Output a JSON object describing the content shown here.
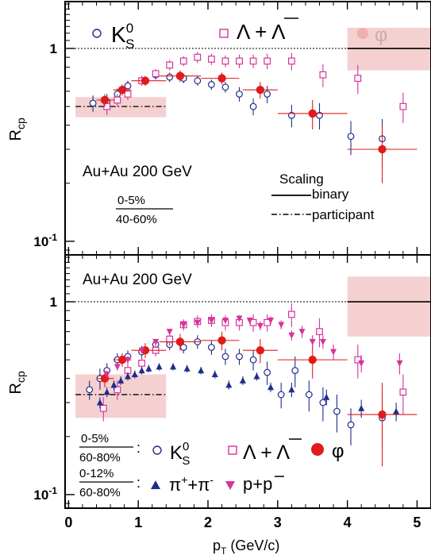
{
  "chart_data": [
    {
      "type": "scatter",
      "panel": "top",
      "ylabel": "R",
      "ylabel_sub": "cp",
      "yscale": "log",
      "ylim": [
        0.085,
        1.75
      ],
      "xlim": [
        -0.05,
        5.2
      ],
      "y_ticks": [
        {
          "value": 1,
          "label": "1"
        },
        {
          "value": 0.1,
          "label": "10",
          "sup": "-1"
        }
      ],
      "reference_lines": [
        {
          "y": 1,
          "style": "dotted"
        }
      ],
      "annotation": "Au+Au 200 GeV",
      "ratio": {
        "num": "0-5%",
        "den": "40-60%"
      },
      "scaling": {
        "title": "Scaling",
        "binary": "binary",
        "participant": "participant"
      },
      "bands": [
        {
          "x0": 0.1,
          "x1": 1.4,
          "y0": 0.44,
          "y1": 0.56,
          "label": "participant scaling uncertainty",
          "line_y": 0.5,
          "line": "dashdot"
        },
        {
          "x0": 4.0,
          "x1": 5.2,
          "y0": 0.77,
          "y1": 1.28,
          "label": "binary scaling uncertainty",
          "line_y": 1.0,
          "line": "solid"
        }
      ],
      "legend": {
        "k0s": "K",
        "k0s_sup": "0",
        "k0s_sub": "S",
        "lambda": "Λ + Λ",
        "phi": "φ"
      },
      "series": [
        {
          "name": "K0S",
          "marker": "open-circle",
          "color": "#1f2d8a",
          "x": [
            0.35,
            0.55,
            0.7,
            0.85,
            1.05,
            1.25,
            1.45,
            1.65,
            1.85,
            2.05,
            2.25,
            2.45,
            2.65,
            2.85,
            3.2,
            3.6,
            4.05,
            4.5
          ],
          "y": [
            0.52,
            0.53,
            0.58,
            0.64,
            0.68,
            0.73,
            0.71,
            0.7,
            0.68,
            0.65,
            0.63,
            0.58,
            0.5,
            0.58,
            0.45,
            0.45,
            0.35,
            0.34
          ],
          "yerr": [
            0.05,
            0.05,
            0.04,
            0.04,
            0.04,
            0.04,
            0.04,
            0.04,
            0.04,
            0.04,
            0.04,
            0.05,
            0.05,
            0.06,
            0.06,
            0.07,
            0.07,
            0.09
          ]
        },
        {
          "name": "Lambda+AntiLambda",
          "marker": "open-square",
          "color": "#d6339b",
          "x": [
            0.55,
            0.7,
            0.85,
            1.05,
            1.25,
            1.45,
            1.65,
            1.85,
            2.05,
            2.25,
            2.45,
            2.65,
            2.85,
            3.2,
            3.65,
            4.15,
            4.8
          ],
          "y": [
            0.5,
            0.54,
            0.58,
            0.68,
            0.74,
            0.82,
            0.86,
            0.9,
            0.88,
            0.86,
            0.86,
            0.86,
            0.86,
            0.86,
            0.73,
            0.7,
            0.5
          ],
          "yerr": [
            0.05,
            0.04,
            0.04,
            0.04,
            0.04,
            0.05,
            0.05,
            0.06,
            0.06,
            0.06,
            0.07,
            0.07,
            0.08,
            0.09,
            0.1,
            0.12,
            0.09
          ]
        },
        {
          "name": "phi",
          "marker": "filled-circle",
          "color": "#e01b1b",
          "x": [
            0.52,
            0.77,
            1.1,
            1.6,
            2.2,
            2.75,
            3.5,
            4.5
          ],
          "xerr_lo": [
            0.12,
            0.13,
            0.2,
            0.3,
            0.3,
            0.25,
            0.5,
            0.5
          ],
          "xerr_hi": [
            0.13,
            0.13,
            0.3,
            0.3,
            0.25,
            0.25,
            0.5,
            0.5
          ],
          "y": [
            0.54,
            0.61,
            0.68,
            0.72,
            0.7,
            0.61,
            0.46,
            0.3
          ],
          "yerr": [
            0.04,
            0.04,
            0.04,
            0.05,
            0.05,
            0.06,
            0.08,
            0.1
          ]
        }
      ]
    },
    {
      "type": "scatter",
      "panel": "bottom",
      "ylabel": "R",
      "ylabel_sub": "cp",
      "xlabel": "p",
      "xlabel_sub": "T",
      "xlabel_rest": " (GeV/c)",
      "yscale": "log",
      "ylim": [
        0.085,
        1.75
      ],
      "xlim": [
        -0.05,
        5.2
      ],
      "x_ticks": [
        "0",
        "1",
        "2",
        "3",
        "4",
        "5"
      ],
      "y_ticks": [
        {
          "value": 1,
          "label": "1"
        },
        {
          "value": 0.1,
          "label": "10",
          "sup": "-1"
        }
      ],
      "reference_lines": [
        {
          "y": 1,
          "style": "dotted"
        }
      ],
      "annotation": "Au+Au 200 GeV",
      "bands": [
        {
          "x0": 0.1,
          "x1": 1.4,
          "y0": 0.25,
          "y1": 0.42,
          "label": "participant scaling uncertainty",
          "line_y": 0.33,
          "line": "dashdot"
        },
        {
          "x0": 4.0,
          "x1": 5.2,
          "y0": 0.66,
          "y1": 1.35,
          "label": "binary scaling uncertainty",
          "line_y": 1.0,
          "line": "solid"
        }
      ],
      "legend": {
        "ratio1": {
          "num": "0-5%",
          "den": "60-80%"
        },
        "ratio2": {
          "num": "0-12%",
          "den": "60-80%"
        },
        "colon": ":",
        "k0s": "K",
        "k0s_sup": "0",
        "k0s_sub": "S",
        "lambda": "Λ + Λ",
        "phi": "φ",
        "pion": "π",
        "pion_plus": "+",
        "pion_join": "+π",
        "pion_minus": "-",
        "proton": "p+p"
      },
      "series": [
        {
          "name": "K0S",
          "marker": "open-circle",
          "color": "#1f2d8a",
          "x": [
            0.3,
            0.45,
            0.55,
            0.7,
            0.85,
            1.05,
            1.25,
            1.45,
            1.65,
            1.85,
            2.05,
            2.25,
            2.45,
            2.65,
            2.85,
            3.05,
            3.25,
            3.45,
            3.65,
            3.85,
            4.05,
            4.5
          ],
          "y": [
            0.35,
            0.4,
            0.44,
            0.5,
            0.52,
            0.55,
            0.6,
            0.6,
            0.58,
            0.62,
            0.58,
            0.52,
            0.52,
            0.5,
            0.43,
            0.33,
            0.44,
            0.33,
            0.3,
            0.27,
            0.23,
            0.25
          ],
          "yerr": [
            0.04,
            0.05,
            0.04,
            0.04,
            0.04,
            0.04,
            0.04,
            0.04,
            0.04,
            0.05,
            0.05,
            0.05,
            0.05,
            0.06,
            0.06,
            0.05,
            0.08,
            0.06,
            0.06,
            0.06,
            0.05,
            0.07
          ]
        },
        {
          "name": "Lambda+AntiLambda",
          "marker": "open-square",
          "color": "#d6339b",
          "x": [
            0.5,
            0.7,
            0.85,
            1.05,
            1.25,
            1.45,
            1.65,
            1.85,
            2.05,
            2.25,
            2.45,
            2.65,
            2.85,
            3.2,
            3.6,
            4.15,
            4.8
          ],
          "y": [
            0.28,
            0.35,
            0.44,
            0.48,
            0.56,
            0.64,
            0.76,
            0.79,
            0.8,
            0.78,
            0.78,
            0.78,
            0.78,
            0.86,
            0.7,
            0.5,
            0.34
          ],
          "yerr": [
            0.04,
            0.04,
            0.04,
            0.04,
            0.04,
            0.05,
            0.05,
            0.06,
            0.06,
            0.07,
            0.07,
            0.08,
            0.08,
            0.12,
            0.12,
            0.1,
            0.08
          ]
        },
        {
          "name": "phi",
          "marker": "filled-circle",
          "color": "#e01b1b",
          "x": [
            0.52,
            0.77,
            1.1,
            1.6,
            2.2,
            2.75,
            3.5,
            4.5
          ],
          "xerr_lo": [
            0.12,
            0.13,
            0.2,
            0.3,
            0.3,
            0.25,
            0.5,
            0.5
          ],
          "xerr_hi": [
            0.13,
            0.13,
            0.3,
            0.3,
            0.25,
            0.25,
            0.5,
            0.5
          ],
          "y": [
            0.4,
            0.5,
            0.56,
            0.62,
            0.63,
            0.56,
            0.5,
            0.26
          ],
          "yerr": [
            0.04,
            0.04,
            0.05,
            0.06,
            0.07,
            0.08,
            0.1,
            0.12
          ]
        },
        {
          "name": "pi+ + pi-",
          "marker": "filled-triangle-up",
          "color": "#1f2d8a",
          "x": [
            0.45,
            0.55,
            0.65,
            0.75,
            0.85,
            0.95,
            1.05,
            1.15,
            1.3,
            1.5,
            1.7,
            1.9,
            2.1,
            2.3,
            2.5,
            2.7,
            2.9,
            3.2,
            3.7,
            4.2,
            4.7
          ],
          "y": [
            0.3,
            0.34,
            0.37,
            0.39,
            0.41,
            0.42,
            0.44,
            0.45,
            0.46,
            0.46,
            0.45,
            0.44,
            0.42,
            0.37,
            0.39,
            0.41,
            0.36,
            0.35,
            0.32,
            0.28,
            0.27
          ],
          "yerr": [
            0.02,
            0.02,
            0.02,
            0.02,
            0.02,
            0.02,
            0.02,
            0.02,
            0.02,
            0.02,
            0.02,
            0.02,
            0.02,
            0.02,
            0.02,
            0.02,
            0.02,
            0.03,
            0.03,
            0.03,
            0.03
          ]
        },
        {
          "name": "p + pbar",
          "marker": "filled-triangle-down",
          "color": "#d6339b",
          "x": [
            0.55,
            0.7,
            0.85,
            1.05,
            1.25,
            1.45,
            1.65,
            1.85,
            2.05,
            2.25,
            2.45,
            2.6,
            2.75,
            2.9,
            3.05,
            3.2,
            3.35,
            3.5,
            3.65,
            3.8,
            4.2,
            4.75
          ],
          "y": [
            0.42,
            0.46,
            0.5,
            0.56,
            0.62,
            0.7,
            0.76,
            0.78,
            0.8,
            0.8,
            0.82,
            0.8,
            0.75,
            0.8,
            0.76,
            0.67,
            0.7,
            0.62,
            0.62,
            0.55,
            0.48,
            0.48
          ],
          "yerr": [
            0.02,
            0.02,
            0.02,
            0.02,
            0.02,
            0.02,
            0.03,
            0.03,
            0.03,
            0.03,
            0.03,
            0.03,
            0.04,
            0.04,
            0.04,
            0.04,
            0.05,
            0.05,
            0.05,
            0.05,
            0.05,
            0.06
          ]
        }
      ]
    }
  ]
}
